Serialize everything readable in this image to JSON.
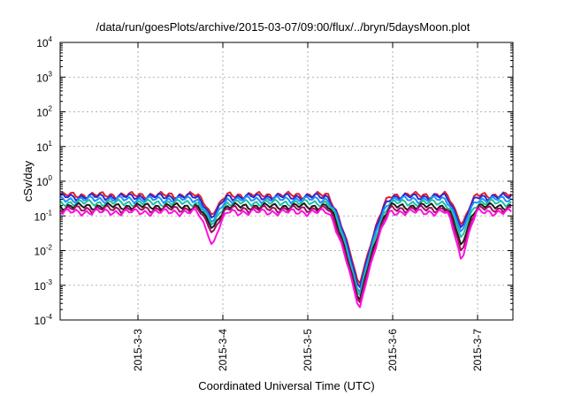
{
  "chart_data": {
    "type": "line",
    "title": "/data/run/goesPlots/archive/2015-03-07/09:00/flux/../bryn/5daysMoon.plot",
    "xlabel": "Coordinated Universal Time (UTC)",
    "ylabel": "cSv/day",
    "y_scale": "log",
    "ylim": [
      0.0001,
      10000
    ],
    "y_ticks": [
      {
        "base": "10",
        "exp": "4",
        "value": 10000
      },
      {
        "base": "10",
        "exp": "3",
        "value": 1000
      },
      {
        "base": "10",
        "exp": "2",
        "value": 100
      },
      {
        "base": "10",
        "exp": "1",
        "value": 10
      },
      {
        "base": "10",
        "exp": "0",
        "value": 1
      },
      {
        "base": "10",
        "exp": "-1",
        "value": 0.1
      },
      {
        "base": "10",
        "exp": "-2",
        "value": 0.01
      },
      {
        "base": "10",
        "exp": "-3",
        "value": 0.001
      },
      {
        "base": "10",
        "exp": "-4",
        "value": 0.0001
      }
    ],
    "xlim": [
      "2015-03-02 02:00",
      "2015-03-07 10:00"
    ],
    "x_ticks": [
      "2015-3-3",
      "2015-3-4",
      "2015-3-5",
      "2015-3-6",
      "2015-3-7"
    ],
    "grid": true,
    "legend": "none",
    "series": [
      {
        "color": "#e0202a",
        "base": 0.4,
        "events": [
          {
            "at": "2015-03-03 21:00",
            "min": 0.1
          },
          {
            "at": "2015-03-05 14:30",
            "min": 0.0009
          },
          {
            "at": "2015-03-06 19:30",
            "min": 0.05
          }
        ]
      },
      {
        "color": "#2a2ad0",
        "base": 0.36,
        "events": [
          {
            "at": "2015-03-03 21:00",
            "min": 0.08
          },
          {
            "at": "2015-03-05 14:30",
            "min": 0.0007
          },
          {
            "at": "2015-03-06 19:30",
            "min": 0.04
          }
        ]
      },
      {
        "color": "#1e90ff",
        "base": 0.3,
        "events": [
          {
            "at": "2015-03-03 21:00",
            "min": 0.06
          },
          {
            "at": "2015-03-05 14:30",
            "min": 0.0005
          },
          {
            "at": "2015-03-06 19:30",
            "min": 0.03
          }
        ]
      },
      {
        "color": "#20c0a0",
        "base": 0.24,
        "events": [
          {
            "at": "2015-03-03 21:00",
            "min": 0.05
          },
          {
            "at": "2015-03-05 14:30",
            "min": 0.0004
          },
          {
            "at": "2015-03-06 19:30",
            "min": 0.02
          }
        ]
      },
      {
        "color": "#1a1a1a",
        "base": 0.19,
        "events": [
          {
            "at": "2015-03-03 21:00",
            "min": 0.04
          },
          {
            "at": "2015-03-05 14:30",
            "min": 0.0003
          },
          {
            "at": "2015-03-06 19:30",
            "min": 0.012
          }
        ]
      },
      {
        "color": "#a01060",
        "base": 0.16,
        "events": [
          {
            "at": "2015-03-03 21:00",
            "min": 0.03
          },
          {
            "at": "2015-03-05 14:30",
            "min": 0.00025
          },
          {
            "at": "2015-03-06 19:30",
            "min": 0.008
          }
        ]
      },
      {
        "color": "#ff10e0",
        "base": 0.13,
        "events": [
          {
            "at": "2015-03-03 21:00",
            "min": 0.013
          },
          {
            "at": "2015-03-05 14:30",
            "min": 0.00018
          },
          {
            "at": "2015-03-06 19:30",
            "min": 0.0045
          }
        ]
      }
    ]
  }
}
